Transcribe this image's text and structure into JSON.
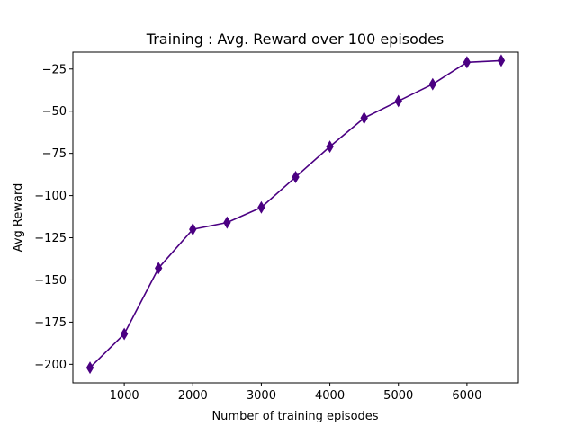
{
  "chart_data": {
    "type": "line",
    "title": "Training : Avg. Reward over 100 episodes",
    "xlabel": "Number of training episodes",
    "ylabel": "Avg Reward",
    "xlim": [
      250,
      6750
    ],
    "ylim": [
      -211,
      -15
    ],
    "xticks": [
      1000,
      2000,
      3000,
      4000,
      5000,
      6000
    ],
    "yticks": [
      -200,
      -175,
      -150,
      -125,
      -100,
      -75,
      -50,
      -25
    ],
    "xtick_labels": [
      "1000",
      "2000",
      "3000",
      "4000",
      "5000",
      "6000"
    ],
    "ytick_labels": [
      "−200",
      "−175",
      "−150",
      "−125",
      "−100",
      "−75",
      "−50",
      "−25"
    ],
    "grid": false,
    "series": [
      {
        "color": "#4b0082",
        "marker": "thin_diamond",
        "x": [
          500,
          1000,
          1500,
          2000,
          2500,
          3000,
          3500,
          4000,
          4500,
          5000,
          5500,
          6000,
          6500
        ],
        "y": [
          -202,
          -182,
          -143,
          -120,
          -116,
          -107,
          -89,
          -71,
          -54,
          -44,
          -34,
          -21,
          -20
        ]
      }
    ]
  }
}
